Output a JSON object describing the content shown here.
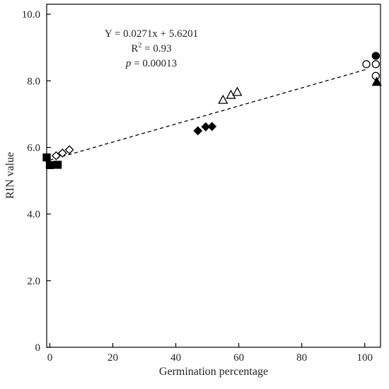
{
  "chart_data": {
    "type": "scatter",
    "xlabel": "Germination percentage",
    "ylabel": "RIN value",
    "xlim": [
      -1,
      105
    ],
    "ylim": [
      0,
      10.3
    ],
    "x_ticks": [
      0,
      20,
      40,
      60,
      80,
      100
    ],
    "x_tick_labels": [
      "0",
      "20",
      "40",
      "60",
      "80",
      "100"
    ],
    "y_ticks": [
      0,
      2,
      4,
      6,
      8,
      10
    ],
    "y_tick_labels": [
      "0",
      "2.0",
      "4.0",
      "6.0",
      "8.0",
      "10.0"
    ],
    "grid": false,
    "annotation": {
      "equation": "Y = 0.0271x + 5.6201",
      "r2_prefix": "R",
      "r2_sup": "2",
      "r2_value": " = 0.93",
      "p_symbol": "p",
      "p_value": " = 0.00013"
    },
    "trendline": {
      "slope": 0.0271,
      "intercept": 5.6201,
      "x_range": [
        0,
        101
      ],
      "style": "dashed"
    },
    "series": [
      {
        "marker": "square",
        "fill": "#000000",
        "points": [
          [
            -1,
            5.7
          ],
          [
            0,
            5.47
          ],
          [
            2.5,
            5.48
          ]
        ]
      },
      {
        "marker": "diamond",
        "fill": "#ffffff",
        "points": [
          [
            2,
            5.75
          ],
          [
            4,
            5.83
          ],
          [
            6.2,
            5.93
          ]
        ]
      },
      {
        "marker": "diamond",
        "fill": "#000000",
        "points": [
          [
            47,
            6.5
          ],
          [
            49.5,
            6.62
          ],
          [
            51.5,
            6.63
          ]
        ]
      },
      {
        "marker": "triangle",
        "fill": "#ffffff",
        "points": [
          [
            55,
            7.43
          ],
          [
            57.5,
            7.58
          ],
          [
            59.5,
            7.67
          ]
        ]
      },
      {
        "marker": "circle",
        "fill": "#ffffff",
        "points": [
          [
            100.5,
            8.5
          ],
          [
            103.5,
            8.5
          ],
          [
            103.5,
            8.15
          ]
        ]
      },
      {
        "marker": "circle",
        "fill": "#000000",
        "points": [
          [
            103.5,
            8.75
          ]
        ]
      },
      {
        "marker": "triangle",
        "fill": "#000000",
        "points": [
          [
            103.8,
            7.97
          ]
        ]
      }
    ]
  }
}
